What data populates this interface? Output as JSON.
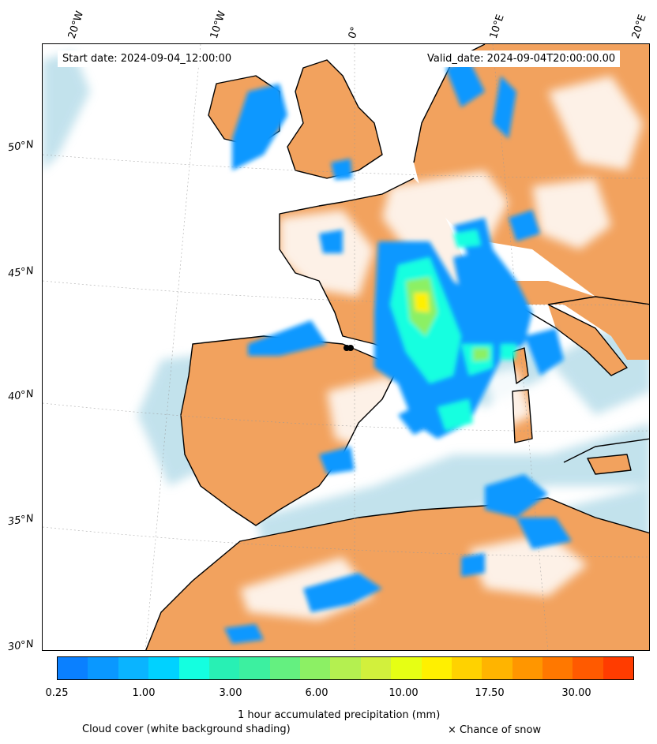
{
  "header": {
    "start_date": "Start date: 2024-09-04_12:00:00",
    "valid_date": "Valid_date: 2024-09-04T20:00:00.00"
  },
  "longitude_labels": [
    "20°W",
    "10°W",
    "0°",
    "10°E",
    "20°E"
  ],
  "latitude_labels": [
    "50°N",
    "45°N",
    "40°N",
    "35°N",
    "30°N"
  ],
  "colorbar": {
    "title": "1 hour accumulated precipitation (mm)",
    "tick_labels": [
      "0.25",
      "1.00",
      "3.00",
      "6.00",
      "10.00",
      "17.50",
      "30.00"
    ],
    "colors": [
      "#0a80ff",
      "#0a98ff",
      "#0ab4ff",
      "#00d2ff",
      "#14ffe0",
      "#28f0b4",
      "#3cf0a0",
      "#64f080",
      "#8cf064",
      "#b4f050",
      "#d2f03c",
      "#e6ff14",
      "#fff000",
      "#ffd200",
      "#ffb400",
      "#ff9600",
      "#ff7800",
      "#ff5a00",
      "#ff3c00"
    ]
  },
  "legend": {
    "cloud_cover": "Cloud cover (white background shading)",
    "snow": "× Chance of snow"
  },
  "colors": {
    "land": "#f2a25e",
    "sea": "#a9d6e5",
    "cloud": "#ffffff",
    "coast": "#000000"
  }
}
